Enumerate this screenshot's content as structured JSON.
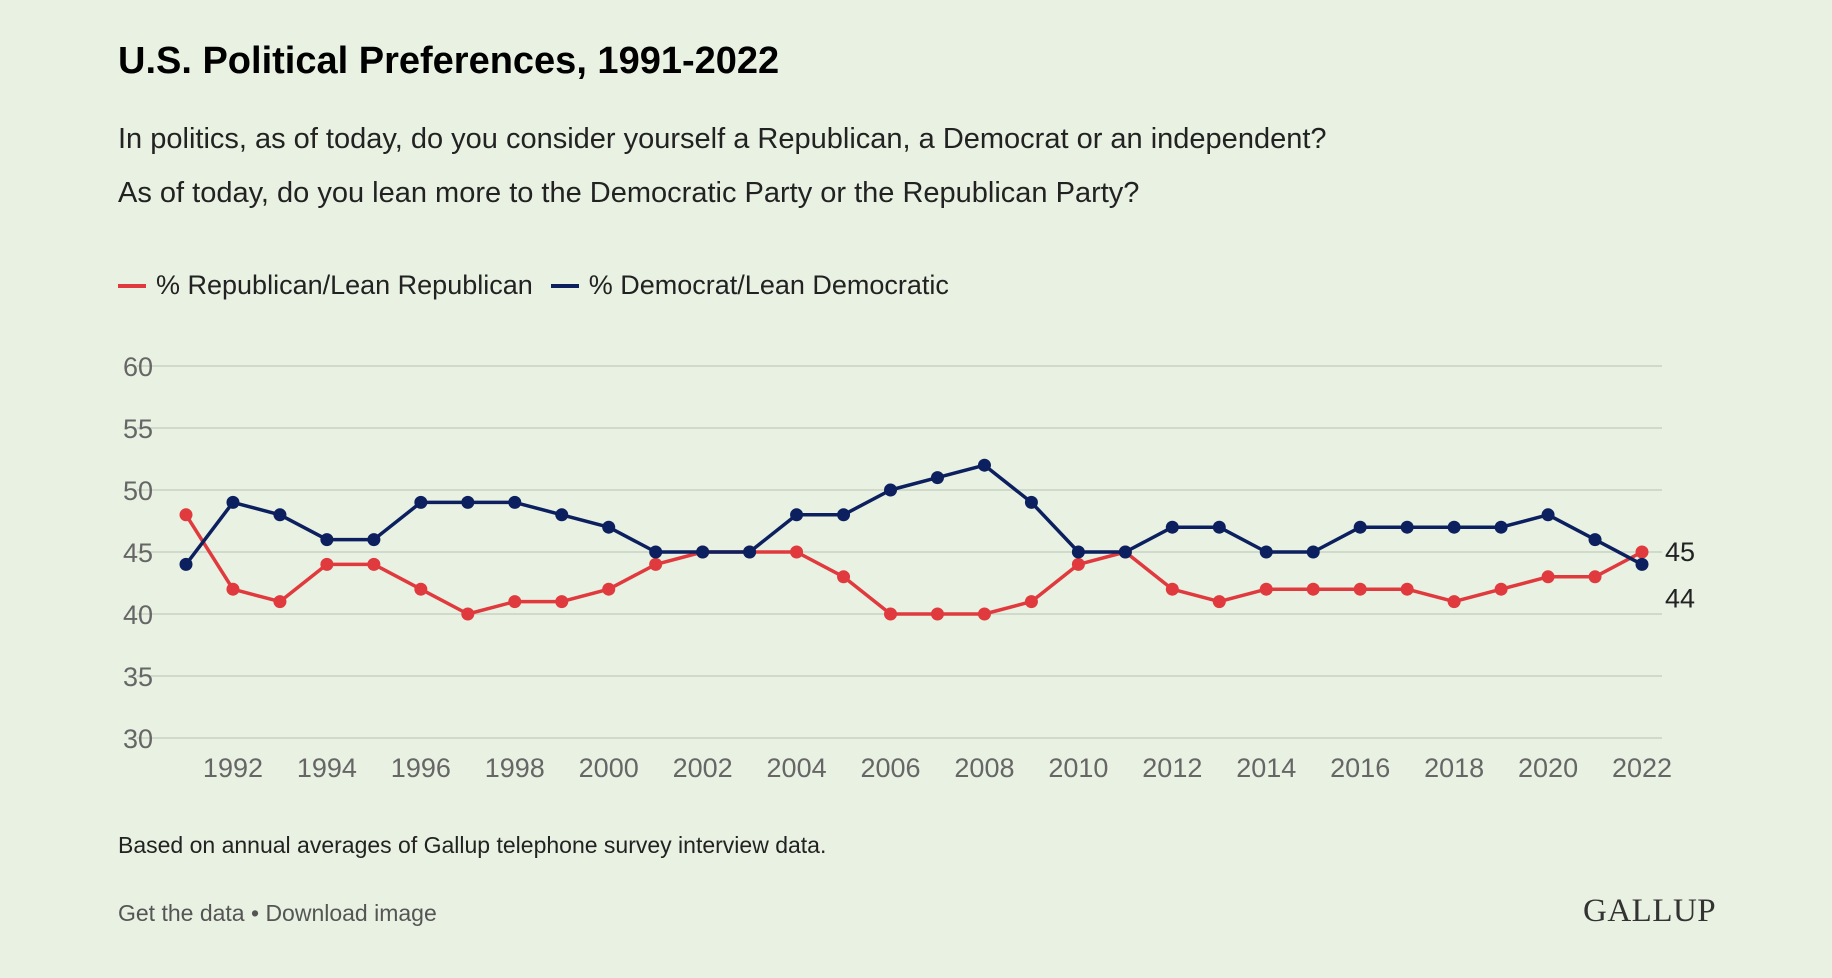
{
  "title": "U.S. Political Preferences, 1991-2022",
  "subtitle_lines": [
    "In politics, as of today, do you consider yourself a Republican, a Democrat or an independent?",
    "As of today, do you lean more to the Democratic Party or the Republican Party?"
  ],
  "note": "Based on annual averages of Gallup telephone survey interview data.",
  "footer": {
    "get_data": "Get the data",
    "separator": " • ",
    "download": "Download image"
  },
  "logo": "GALLUP",
  "chart_data": {
    "type": "line",
    "x": [
      1991,
      1992,
      1993,
      1994,
      1995,
      1996,
      1997,
      1998,
      1999,
      2000,
      2001,
      2002,
      2003,
      2004,
      2005,
      2006,
      2007,
      2008,
      2009,
      2010,
      2011,
      2012,
      2013,
      2014,
      2015,
      2016,
      2017,
      2018,
      2019,
      2020,
      2021,
      2022
    ],
    "series": [
      {
        "name": "% Republican/Lean Republican",
        "color": "#e03a3e",
        "values": [
          48,
          42,
          41,
          44,
          44,
          42,
          40,
          41,
          41,
          42,
          44,
          45,
          45,
          45,
          43,
          40,
          40,
          40,
          41,
          44,
          45,
          42,
          41,
          42,
          42,
          42,
          42,
          41,
          42,
          43,
          43,
          45
        ],
        "end_label": "45"
      },
      {
        "name": "% Democrat/Lean Democratic",
        "color": "#0c1f5e",
        "values": [
          44,
          49,
          48,
          46,
          46,
          49,
          49,
          49,
          48,
          47,
          45,
          45,
          45,
          48,
          48,
          50,
          51,
          52,
          49,
          45,
          45,
          47,
          47,
          45,
          45,
          47,
          47,
          47,
          47,
          48,
          46,
          44
        ],
        "end_label": "44"
      }
    ],
    "ylim": [
      30,
      60
    ],
    "yticks": [
      "30",
      "35",
      "40",
      "45",
      "50",
      "55",
      "60"
    ],
    "xticks": [
      "1992",
      "1994",
      "1996",
      "1998",
      "2000",
      "2002",
      "2004",
      "2006",
      "2008",
      "2010",
      "2012",
      "2014",
      "2016",
      "2018",
      "2020",
      "2022"
    ],
    "grid": true,
    "legend": "top-left"
  }
}
